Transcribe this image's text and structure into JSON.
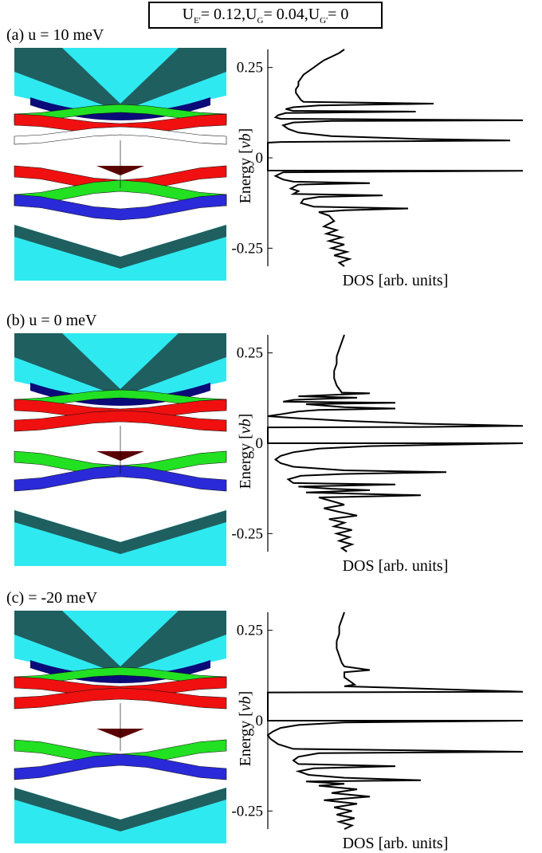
{
  "header": {
    "segments": [
      {
        "main": "U",
        "sub": "E'",
        "rest": "= 0.12, "
      },
      {
        "main": "U",
        "sub": "G",
        "rest": "= 0.04, "
      },
      {
        "main": "U",
        "sub": "G'",
        "rest": "= 0"
      }
    ]
  },
  "chart_data": [
    {
      "type": "line",
      "panel_label": "(a) u = 10 meV",
      "xlabel": "DOS [arb. units]",
      "ylabel": "Energy [vb]",
      "ylabel_main": "Energy [",
      "ylabel_italic": "vb",
      "ylabel_close": "]",
      "yticks": [
        0.25,
        0,
        -0.25
      ],
      "ytick_labels": [
        "0.25",
        "0",
        "-0.25"
      ],
      "ylim": [
        -0.3,
        0.3
      ],
      "grid": false,
      "band_colors": [
        "#2fe9f0",
        "#1f5f60",
        "#0a0a78",
        "#2a2ad8",
        "#22e022",
        "#f01010",
        "#ffffff",
        "#5a0000"
      ],
      "bands_above": [
        "cyan",
        "navy",
        "green",
        "red",
        "white"
      ],
      "bands_below": [
        "red",
        "green",
        "blue",
        "cyan"
      ],
      "gap_low": -0.035,
      "gap_high": 0.04,
      "series": [
        {
          "points": [
            [
              0.3,
              0.3
            ],
            [
              0.28,
              0.29
            ],
            [
              0.25,
              0.28
            ],
            [
              0.22,
              0.27
            ],
            [
              0.2,
              0.26
            ],
            [
              0.18,
              0.25
            ],
            [
              0.16,
              0.24
            ],
            [
              0.14,
              0.23
            ],
            [
              0.13,
              0.22
            ],
            [
              0.12,
              0.21
            ],
            [
              0.12,
              0.2
            ],
            [
              0.11,
              0.19
            ],
            [
              0.11,
              0.18
            ],
            [
              0.12,
              0.17
            ],
            [
              0.13,
              0.16
            ],
            [
              0.14,
              0.155
            ],
            [
              0.65,
              0.15
            ],
            [
              0.2,
              0.145
            ],
            [
              0.1,
              0.14
            ],
            [
              0.07,
              0.135
            ],
            [
              0.1,
              0.13
            ],
            [
              0.58,
              0.128
            ],
            [
              0.07,
              0.124
            ],
            [
              0.04,
              0.118
            ],
            [
              0.03,
              0.112
            ],
            [
              0.05,
              0.108
            ],
            [
              1.0,
              0.104
            ],
            [
              0.25,
              0.102
            ],
            [
              0.1,
              0.098
            ],
            [
              0.06,
              0.09
            ],
            [
              0.08,
              0.08
            ],
            [
              0.12,
              0.07
            ],
            [
              0.25,
              0.06
            ],
            [
              0.6,
              0.052
            ],
            [
              0.95,
              0.048
            ],
            [
              0.05,
              0.044
            ],
            [
              0.0,
              0.042
            ],
            [
              0.0,
              -0.035
            ],
            [
              1.0,
              -0.036
            ],
            [
              0.06,
              -0.04
            ],
            [
              0.03,
              -0.05
            ],
            [
              0.06,
              -0.06
            ],
            [
              0.1,
              -0.066
            ],
            [
              0.4,
              -0.07
            ],
            [
              0.12,
              -0.074
            ],
            [
              0.09,
              -0.085
            ],
            [
              0.12,
              -0.092
            ],
            [
              0.1,
              -0.1
            ],
            [
              0.45,
              -0.104
            ],
            [
              0.2,
              -0.108
            ],
            [
              0.14,
              -0.115
            ],
            [
              0.13,
              -0.125
            ],
            [
              0.18,
              -0.135
            ],
            [
              0.55,
              -0.14
            ],
            [
              0.3,
              -0.145
            ],
            [
              0.2,
              -0.15
            ],
            [
              0.24,
              -0.16
            ],
            [
              0.26,
              -0.175
            ],
            [
              0.22,
              -0.19
            ],
            [
              0.27,
              -0.2
            ],
            [
              0.23,
              -0.21
            ],
            [
              0.29,
              -0.22
            ],
            [
              0.24,
              -0.23
            ],
            [
              0.3,
              -0.24
            ],
            [
              0.25,
              -0.25
            ],
            [
              0.31,
              -0.26
            ],
            [
              0.26,
              -0.27
            ],
            [
              0.32,
              -0.28
            ],
            [
              0.28,
              -0.29
            ],
            [
              0.3,
              -0.3
            ]
          ]
        }
      ]
    },
    {
      "type": "line",
      "panel_label": "(b) u = 0 meV",
      "xlabel": "DOS [arb. units]",
      "ylabel": "Energy [vb]",
      "ylabel_main": "Energy [",
      "ylabel_italic": "vb",
      "ylabel_close": "]",
      "yticks": [
        0.25,
        0,
        -0.25
      ],
      "ytick_labels": [
        "0.25",
        "0",
        "-0.25"
      ],
      "ylim": [
        -0.3,
        0.3
      ],
      "grid": false,
      "band_colors": [
        "#2fe9f0",
        "#1f5f60",
        "#0a0a78",
        "#2a2ad8",
        "#22e022",
        "#f01010",
        "#ffffff",
        "#5a0000"
      ],
      "bands_above": [
        "cyan",
        "navy",
        "green",
        "red",
        "red"
      ],
      "bands_below": [
        "green",
        "blue",
        "cyan"
      ],
      "gap_low": 0.0,
      "gap_high": 0.04,
      "series": [
        {
          "points": [
            [
              0.3,
              0.3
            ],
            [
              0.29,
              0.28
            ],
            [
              0.28,
              0.26
            ],
            [
              0.27,
              0.24
            ],
            [
              0.27,
              0.22
            ],
            [
              0.26,
              0.2
            ],
            [
              0.26,
              0.18
            ],
            [
              0.27,
              0.16
            ],
            [
              0.28,
              0.15
            ],
            [
              0.29,
              0.14
            ],
            [
              0.4,
              0.138
            ],
            [
              0.12,
              0.13
            ],
            [
              0.35,
              0.126
            ],
            [
              0.1,
              0.12
            ],
            [
              0.06,
              0.115
            ],
            [
              0.5,
              0.112
            ],
            [
              0.15,
              0.108
            ],
            [
              0.3,
              0.1
            ],
            [
              0.5,
              0.096
            ],
            [
              0.2,
              0.092
            ],
            [
              0.12,
              0.088
            ],
            [
              0.05,
              0.08
            ],
            [
              0.0,
              0.075
            ],
            [
              0.1,
              0.07
            ],
            [
              0.3,
              0.062
            ],
            [
              0.6,
              0.054
            ],
            [
              1.0,
              0.048
            ],
            [
              0.6,
              0.045
            ],
            [
              0.0,
              0.044
            ],
            [
              0.0,
              0.0
            ],
            [
              1.0,
              0.0
            ],
            [
              0.4,
              -0.008
            ],
            [
              0.2,
              -0.015
            ],
            [
              0.1,
              -0.025
            ],
            [
              0.05,
              -0.035
            ],
            [
              0.03,
              -0.045
            ],
            [
              0.05,
              -0.055
            ],
            [
              0.1,
              -0.065
            ],
            [
              0.3,
              -0.075
            ],
            [
              0.7,
              -0.08
            ],
            [
              0.3,
              -0.085
            ],
            [
              0.13,
              -0.09
            ],
            [
              0.08,
              -0.1
            ],
            [
              0.1,
              -0.11
            ],
            [
              0.5,
              -0.114
            ],
            [
              0.12,
              -0.12
            ],
            [
              0.25,
              -0.126
            ],
            [
              0.4,
              -0.13
            ],
            [
              0.15,
              -0.136
            ],
            [
              0.6,
              -0.144
            ],
            [
              0.2,
              -0.15
            ],
            [
              0.25,
              -0.16
            ],
            [
              0.3,
              -0.17
            ],
            [
              0.22,
              -0.18
            ],
            [
              0.28,
              -0.19
            ],
            [
              0.35,
              -0.2
            ],
            [
              0.24,
              -0.21
            ],
            [
              0.3,
              -0.22
            ],
            [
              0.26,
              -0.23
            ],
            [
              0.33,
              -0.24
            ],
            [
              0.27,
              -0.25
            ],
            [
              0.32,
              -0.26
            ],
            [
              0.28,
              -0.27
            ],
            [
              0.33,
              -0.28
            ],
            [
              0.29,
              -0.29
            ],
            [
              0.31,
              -0.3
            ]
          ]
        }
      ]
    },
    {
      "type": "line",
      "panel_label": "(c) = -20 meV",
      "xlabel": "DOS [arb. units]",
      "ylabel": "Energy [vb]",
      "ylabel_main": "Energy [",
      "ylabel_italic": "vb",
      "ylabel_close": "]",
      "yticks": [
        0.25,
        0,
        -0.25
      ],
      "ytick_labels": [
        "0.25",
        "0",
        "-0.25"
      ],
      "ylim": [
        -0.3,
        0.3
      ],
      "grid": false,
      "band_colors": [
        "#2fe9f0",
        "#1f5f60",
        "#0a0a78",
        "#2a2ad8",
        "#22e022",
        "#f01010",
        "#ffffff",
        "#5a0000"
      ],
      "bands_above": [
        "cyan",
        "navy",
        "green",
        "red",
        "red"
      ],
      "bands_below": [
        "green",
        "blue",
        "cyan",
        "cyan"
      ],
      "gap_low": -0.085,
      "gap_high": 0.08,
      "series": [
        {
          "points": [
            [
              0.3,
              0.3
            ],
            [
              0.29,
              0.28
            ],
            [
              0.28,
              0.26
            ],
            [
              0.28,
              0.24
            ],
            [
              0.27,
              0.22
            ],
            [
              0.27,
              0.2
            ],
            [
              0.28,
              0.18
            ],
            [
              0.29,
              0.16
            ],
            [
              0.3,
              0.15
            ],
            [
              0.4,
              0.14
            ],
            [
              0.3,
              0.134
            ],
            [
              0.3,
              0.12
            ],
            [
              0.32,
              0.11
            ],
            [
              0.34,
              0.1
            ],
            [
              0.3,
              0.095
            ],
            [
              0.55,
              0.09
            ],
            [
              1.0,
              0.08
            ],
            [
              0.0,
              0.078
            ],
            [
              0.0,
              0.0
            ],
            [
              1.0,
              0.0
            ],
            [
              0.3,
              -0.005
            ],
            [
              0.12,
              -0.012
            ],
            [
              0.05,
              -0.02
            ],
            [
              0.02,
              -0.03
            ],
            [
              0.0,
              -0.04
            ],
            [
              0.01,
              -0.05
            ],
            [
              0.04,
              -0.065
            ],
            [
              0.1,
              -0.078
            ],
            [
              1.0,
              -0.086
            ],
            [
              0.2,
              -0.09
            ],
            [
              0.12,
              -0.1
            ],
            [
              0.1,
              -0.11
            ],
            [
              0.12,
              -0.12
            ],
            [
              0.5,
              -0.126
            ],
            [
              0.18,
              -0.132
            ],
            [
              0.12,
              -0.14
            ],
            [
              0.16,
              -0.15
            ],
            [
              0.3,
              -0.158
            ],
            [
              0.6,
              -0.165
            ],
            [
              0.15,
              -0.168
            ],
            [
              0.3,
              -0.175
            ],
            [
              0.2,
              -0.18
            ],
            [
              0.35,
              -0.19
            ],
            [
              0.25,
              -0.2
            ],
            [
              0.4,
              -0.21
            ],
            [
              0.22,
              -0.22
            ],
            [
              0.35,
              -0.23
            ],
            [
              0.26,
              -0.24
            ],
            [
              0.33,
              -0.25
            ],
            [
              0.27,
              -0.26
            ],
            [
              0.34,
              -0.27
            ],
            [
              0.28,
              -0.28
            ],
            [
              0.33,
              -0.29
            ],
            [
              0.3,
              -0.3
            ]
          ]
        }
      ]
    }
  ]
}
